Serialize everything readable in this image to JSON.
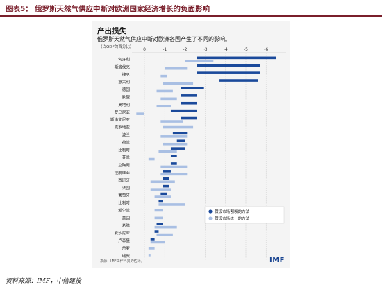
{
  "header": {
    "figure_label": "图表5：",
    "figure_title": "俄罗斯天然气供应中断对欧洲国家经济增长的负面影响"
  },
  "panel": {
    "title": "产出损失",
    "subtitle": "俄罗斯天然气供应中断对欧洲各国产生了不同的影响。",
    "unit": "（占GDP的百分比）",
    "source": "来源：IMF工作人员的估计。",
    "logo": "IMF"
  },
  "footer": {
    "source": "资料来源：IMF，中信建投"
  },
  "colors": {
    "accent": "#7a1f2b",
    "series_dark": "#1b4a9b",
    "series_light": "#a9bfe3"
  },
  "chart_data": {
    "type": "bar",
    "orientation": "horizontal",
    "title": "产出损失",
    "subtitle": "俄罗斯天然气供应中断对欧洲各国产生了不同的影响。",
    "xlabel": "（占GDP的百分比）",
    "x_range": [
      0.5,
      -7
    ],
    "x_ticks": [
      0,
      -1,
      -2,
      -3,
      -4,
      -5,
      -6
    ],
    "x_tick_labels": [
      "0",
      "-1",
      "-2",
      "-3",
      "-4",
      "-5",
      "-6"
    ],
    "legend_position": "bottom-right",
    "categories": [
      "匈牙利",
      "斯洛伐克",
      "捷克",
      "意大利",
      "德国",
      "欧盟",
      "奥地利",
      "罗马尼亚",
      "斯洛文尼亚",
      "克罗地亚",
      "波兰",
      "荷兰",
      "比利时",
      "芬兰",
      "立陶宛",
      "拉脱维亚",
      "西班牙",
      "法国",
      "葡萄牙",
      "比利时",
      "爱尔兰",
      "英国",
      "希腊",
      "爱沙尼亚",
      "卢森堡",
      "丹麦",
      "瑞典"
    ],
    "series": [
      {
        "name": "假设市场割裂的方法",
        "color": "#1b4a9b",
        "ranges": [
          [
            -2.6,
            -6.5
          ],
          [
            -2.6,
            -5.7
          ],
          [
            -2.6,
            -5.7
          ],
          [
            -3.7,
            -5.6
          ],
          [
            -1.8,
            -2.9
          ],
          [
            -1.8,
            -2.6
          ],
          [
            -1.8,
            -2.6
          ],
          [
            -1.3,
            -2.6
          ],
          [
            -1.8,
            -2.6
          ],
          null,
          [
            -1.4,
            -2.1
          ],
          [
            -1.6,
            -2.0
          ],
          [
            -1.3,
            -2.0
          ],
          [
            -1.3,
            -1.6
          ],
          [
            -1.3,
            -1.6
          ],
          [
            -0.9,
            -1.3
          ],
          [
            -0.9,
            -1.2
          ],
          [
            -0.9,
            -1.2
          ],
          [
            -0.8,
            -1.1
          ],
          [
            -0.7,
            -0.9
          ],
          null,
          null,
          [
            -0.6,
            -0.9
          ],
          [
            -0.5,
            -0.7
          ],
          [
            -0.3,
            -0.5
          ],
          null,
          null
        ]
      },
      {
        "name": "假设市场统一的方法",
        "color": "#a9bfe3",
        "ranges": [
          [
            -2.0,
            -3.4
          ],
          [
            -1.0,
            -2.1
          ],
          [
            -0.8,
            -1.1
          ],
          [
            -0.9,
            -2.4
          ],
          [
            -0.6,
            -1.4
          ],
          [
            -0.8,
            -1.6
          ],
          [
            -0.6,
            -1.3
          ],
          [
            0.4,
            0.0
          ],
          [
            -0.8,
            -1.9
          ],
          [
            -0.9,
            -2.4
          ],
          [
            -0.8,
            -2.1
          ],
          [
            -0.9,
            -2.1
          ],
          [
            -0.7,
            -1.6
          ],
          [
            -0.2,
            -0.5
          ],
          [
            -0.8,
            -2.1
          ],
          [
            -0.8,
            -2.1
          ],
          [
            -0.3,
            -1.5
          ],
          [
            -0.3,
            -1.3
          ],
          [
            -0.5,
            -1.3
          ],
          [
            -0.7,
            -2.0
          ],
          [
            -0.5,
            -0.9
          ],
          [
            -0.5,
            -0.9
          ],
          [
            -0.5,
            -1.6
          ],
          [
            -0.6,
            -1.4
          ],
          [
            -0.3,
            -1.0
          ],
          [
            -0.2,
            -0.5
          ],
          [
            -0.2,
            -0.3
          ]
        ]
      }
    ]
  }
}
